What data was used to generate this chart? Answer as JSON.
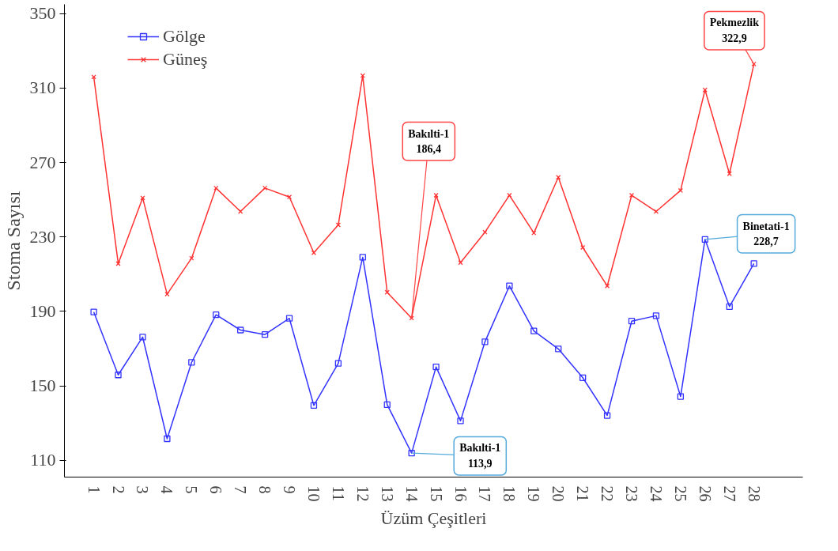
{
  "chart_data": {
    "type": "line",
    "xlabel": "Üzüm Çeşitleri",
    "ylabel": "Stoma Sayısı",
    "categories": [
      "1",
      "2",
      "3",
      "4",
      "5",
      "6",
      "7",
      "8",
      "9",
      "10",
      "11",
      "12",
      "13",
      "14",
      "15",
      "16",
      "17",
      "18",
      "19",
      "20",
      "21",
      "22",
      "23",
      "24",
      "25",
      "26",
      "27",
      "28"
    ],
    "series": [
      {
        "name": "Gölge",
        "color": "#3333ff",
        "marker": "square",
        "values": [
          189.7,
          155.9,
          176.2,
          121.6,
          162.6,
          188.2,
          180,
          177.6,
          186.3,
          139.5,
          162.1,
          219.1,
          139.9,
          113.9,
          160.2,
          131.2,
          173.7,
          203.7,
          179.5,
          169.9,
          154.4,
          134.1,
          184.8,
          187.7,
          144.3,
          228.7,
          192.6,
          215.7
        ]
      },
      {
        "name": "Güneş",
        "color": "#ff3333",
        "marker": "cross",
        "values": [
          316,
          215.7,
          251,
          199.3,
          218.6,
          256.3,
          243.7,
          256.3,
          251.5,
          221.5,
          236.5,
          316.7,
          200.3,
          186.4,
          252.4,
          216.2,
          232.6,
          252.4,
          232.2,
          262.1,
          224.4,
          203.7,
          252.4,
          243.7,
          255,
          309,
          264,
          322.9
        ]
      }
    ],
    "ylim": [
      101,
      355
    ],
    "yticks": [
      110,
      150,
      190,
      230,
      270,
      310,
      350
    ],
    "legend": "top",
    "grid": false,
    "line_style": "solid",
    "annotations": [
      {
        "text": "Bakılti-1\n186,4",
        "x": "14",
        "y": 186.4
      },
      {
        "text": "Bakılti-1\n113,9",
        "x": "14",
        "y": 113.9
      },
      {
        "text": "Binetati-1\n228,7",
        "x": "26",
        "y": 228.7
      },
      {
        "text": "Pekmezlik\n322,9",
        "x": "28",
        "y": 322.9
      }
    ]
  }
}
